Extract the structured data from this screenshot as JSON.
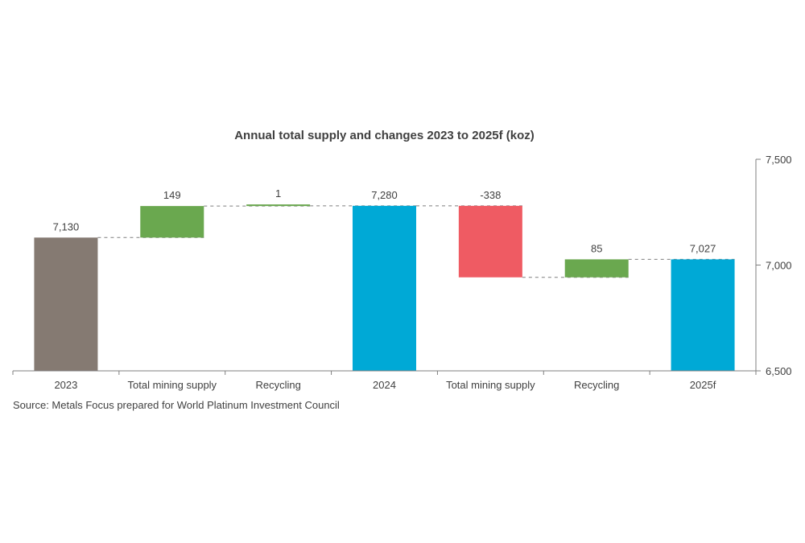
{
  "chart_data": {
    "type": "bar",
    "subtype": "waterfall",
    "title": "Annual total supply and changes 2023 to 2025f (koz)",
    "categories": [
      "2023",
      "Total mining supply",
      "Recycling",
      "2024",
      "Total mining supply",
      "Recycling",
      "2025f"
    ],
    "steps": [
      {
        "category": "2023",
        "kind": "total",
        "value": 7130,
        "label": "7,130"
      },
      {
        "category": "Total mining supply",
        "kind": "change",
        "value": 149,
        "label": "149"
      },
      {
        "category": "Recycling",
        "kind": "change",
        "value": 1,
        "label": "1"
      },
      {
        "category": "2024",
        "kind": "total",
        "value": 7280,
        "label": "7,280"
      },
      {
        "category": "Total mining supply",
        "kind": "change",
        "value": -338,
        "label": "-338"
      },
      {
        "category": "Recycling",
        "kind": "change",
        "value": 85,
        "label": "85"
      },
      {
        "category": "2025f",
        "kind": "total",
        "value": 7027,
        "label": "7,027"
      }
    ],
    "yaxis": {
      "position": "right",
      "ylim": [
        6500,
        7500
      ],
      "ticks": [
        6500,
        7000,
        7500
      ],
      "tick_labels": [
        "6,500",
        "7,000",
        "7,500"
      ]
    },
    "xlabel": "",
    "ylabel": "",
    "grid": false,
    "legend": "none",
    "connectors": "dashed",
    "colors": {
      "first_total": "#857A72",
      "total": "#00A9D6",
      "increase": "#6AA84F",
      "decrease": "#EF5B63",
      "axis": "#7f7f7f",
      "connector": "#7f7f7f"
    },
    "source": "Source: Metals Focus prepared for World Platinum Investment Council"
  }
}
